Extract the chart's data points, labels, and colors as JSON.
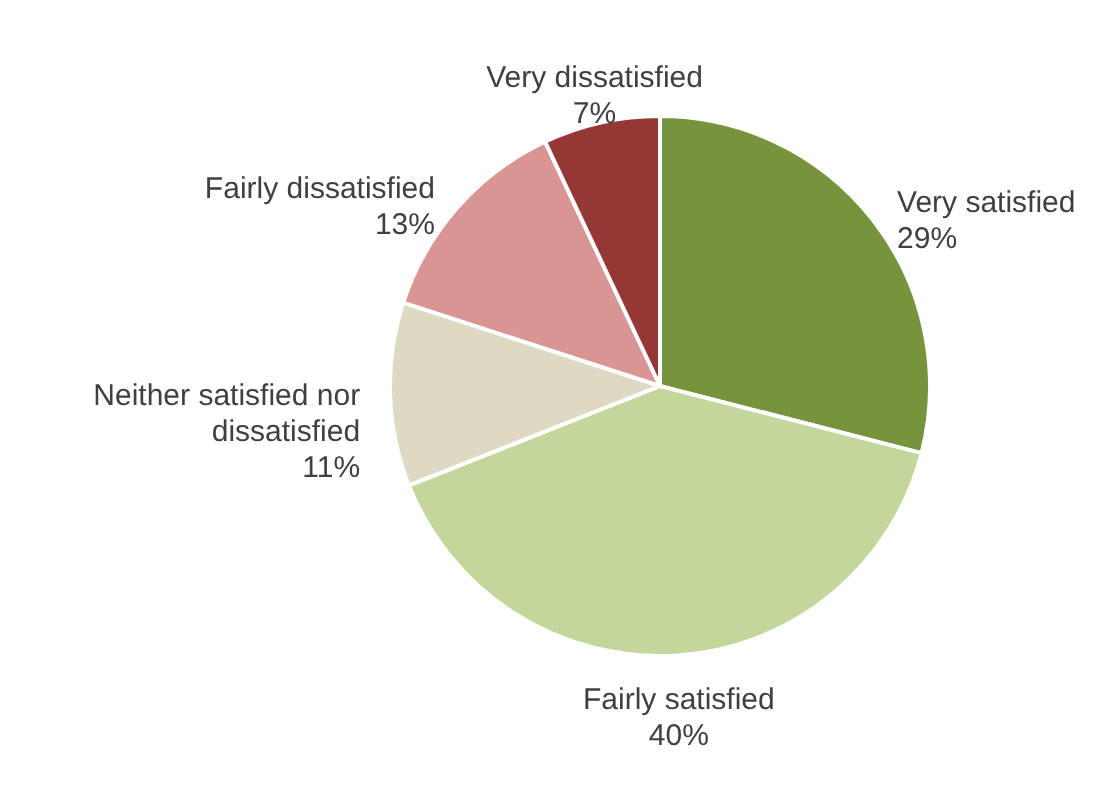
{
  "chart_data": {
    "type": "pie",
    "categories": [
      "Very satisfied",
      "Fairly satisfied",
      "Neither satisfied nor dissatisfied",
      "Fairly dissatisfied",
      "Very dissatisfied"
    ],
    "values": [
      29,
      40,
      11,
      13,
      7
    ],
    "value_labels": [
      "29%",
      "40%",
      "11%",
      "13%",
      "7%"
    ],
    "colors": [
      "#77933c",
      "#c3d69b",
      "#ddd9c3",
      "#d99594",
      "#953735"
    ]
  }
}
